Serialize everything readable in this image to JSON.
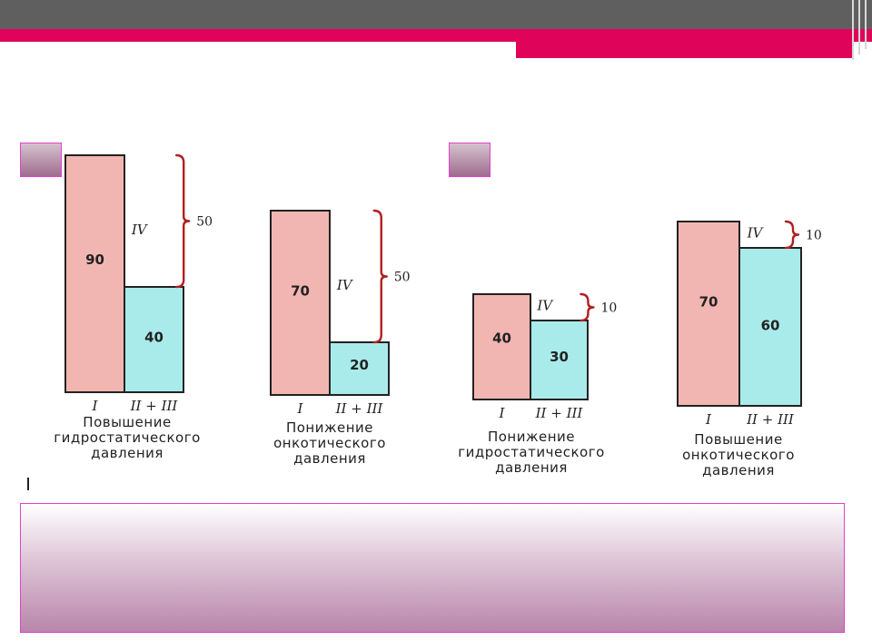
{
  "chart_data": [
    {
      "type": "bar",
      "categories": [
        "I",
        "II + III"
      ],
      "values": [
        90,
        40
      ],
      "diff_label": "IV",
      "diff_value": 50,
      "caption": [
        "Повышение",
        "гидростатического",
        "давления"
      ]
    },
    {
      "type": "bar",
      "categories": [
        "I",
        "II + III"
      ],
      "values": [
        70,
        20
      ],
      "diff_label": "IV",
      "diff_value": 50,
      "caption": [
        "Понижение",
        "онкотического",
        "давления"
      ]
    },
    {
      "type": "bar",
      "categories": [
        "I",
        "II + III"
      ],
      "values": [
        40,
        30
      ],
      "diff_label": "IV",
      "diff_value": 10,
      "caption": [
        "Понижение",
        "гидростатического",
        "давления"
      ]
    },
    {
      "type": "bar",
      "categories": [
        "I",
        "II + III"
      ],
      "values": [
        70,
        60
      ],
      "diff_label": "IV",
      "diff_value": 10,
      "caption": [
        "Повышение",
        "онкотического",
        "давления"
      ]
    }
  ],
  "colors": {
    "top_bar": "#5f5f5f",
    "accent": "#e0035a",
    "bar_pink": "#f2b6b2",
    "bar_blue": "#a9ebeb",
    "brace": "#b02020"
  }
}
